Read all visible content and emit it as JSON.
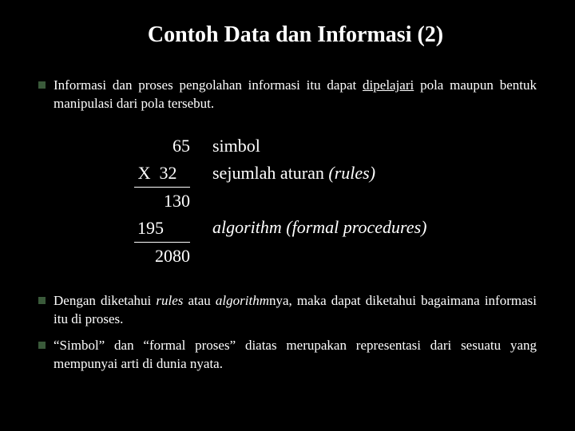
{
  "title": "Contoh  Data dan Informasi (2)",
  "bullet1": {
    "pre": "Informasi dan proses pengolahan informasi itu dapat ",
    "underlined": "dipelajari",
    "post": " pola maupun bentuk manipulasi dari pola tersebut."
  },
  "math": {
    "r1": "65",
    "r2_pre": "X  ",
    "r2_num": "32",
    "r3": "130",
    "r4": "195",
    "r5": "2080"
  },
  "labels": {
    "r1": "simbol",
    "r2_pre": "sejumlah aturan ",
    "r2_it": "(rules)",
    "r4": "algorithm (formal procedures)"
  },
  "bullet2": {
    "pre": "Dengan diketahui ",
    "it1": "rules",
    "mid": " atau ",
    "it2": "algorithm",
    "post": "nya, maka dapat diketahui bagaimana informasi itu di proses."
  },
  "bullet3": "“Simbol” dan “formal proses” diatas merupakan representasi dari sesuatu yang  mempunyai arti di dunia nyata."
}
